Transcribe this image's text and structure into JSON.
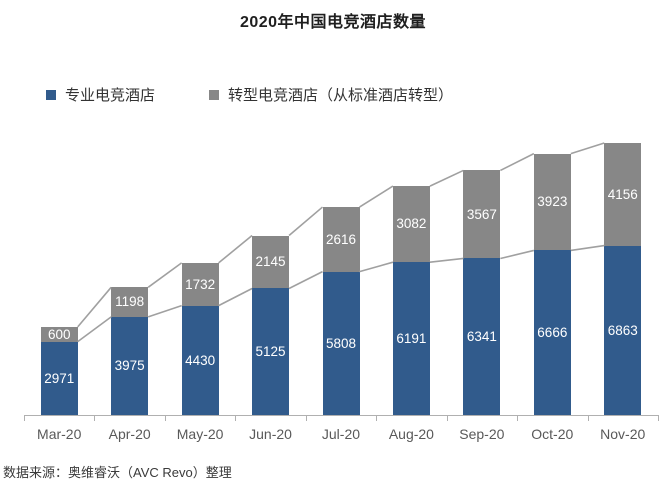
{
  "title": "2020年中国电竞酒店数量",
  "legend": {
    "items": [
      {
        "label": "专业电竞酒店",
        "color": "#315b8c"
      },
      {
        "label": "转型电竞酒店（从标准酒店转型）",
        "color": "#878787"
      }
    ]
  },
  "source_note": "数据来源：奥维睿沃（AVC Revo）整理",
  "chart_data": {
    "type": "bar",
    "subtype": "stacked-column-with-series-lines",
    "title": "2020年中国电竞酒店数量",
    "categories": [
      "Mar-20",
      "Apr-20",
      "May-20",
      "Jun-20",
      "Jul-20",
      "Aug-20",
      "Sep-20",
      "Oct-20",
      "Nov-20"
    ],
    "series": [
      {
        "name": "专业电竞酒店",
        "color": "#315b8c",
        "values": [
          2971,
          3975,
          4430,
          5125,
          5808,
          6191,
          6341,
          6666,
          6863
        ]
      },
      {
        "name": "转型电竞酒店（从标准酒店转型）",
        "color": "#878787",
        "values": [
          600,
          1198,
          1732,
          2145,
          2616,
          3082,
          3567,
          3923,
          4156
        ]
      }
    ],
    "totals": [
      3571,
      5173,
      6162,
      7270,
      8424,
      9273,
      9908,
      10589,
      11019
    ],
    "ylim": [
      0,
      11019
    ],
    "data_labels": true,
    "data_label_color": "#ffffff",
    "grid": false,
    "legend_position": "top-left",
    "series_line_color": "#a0a0a0",
    "axis_color": "#b0b0b0",
    "x_label_color": "#595959"
  }
}
